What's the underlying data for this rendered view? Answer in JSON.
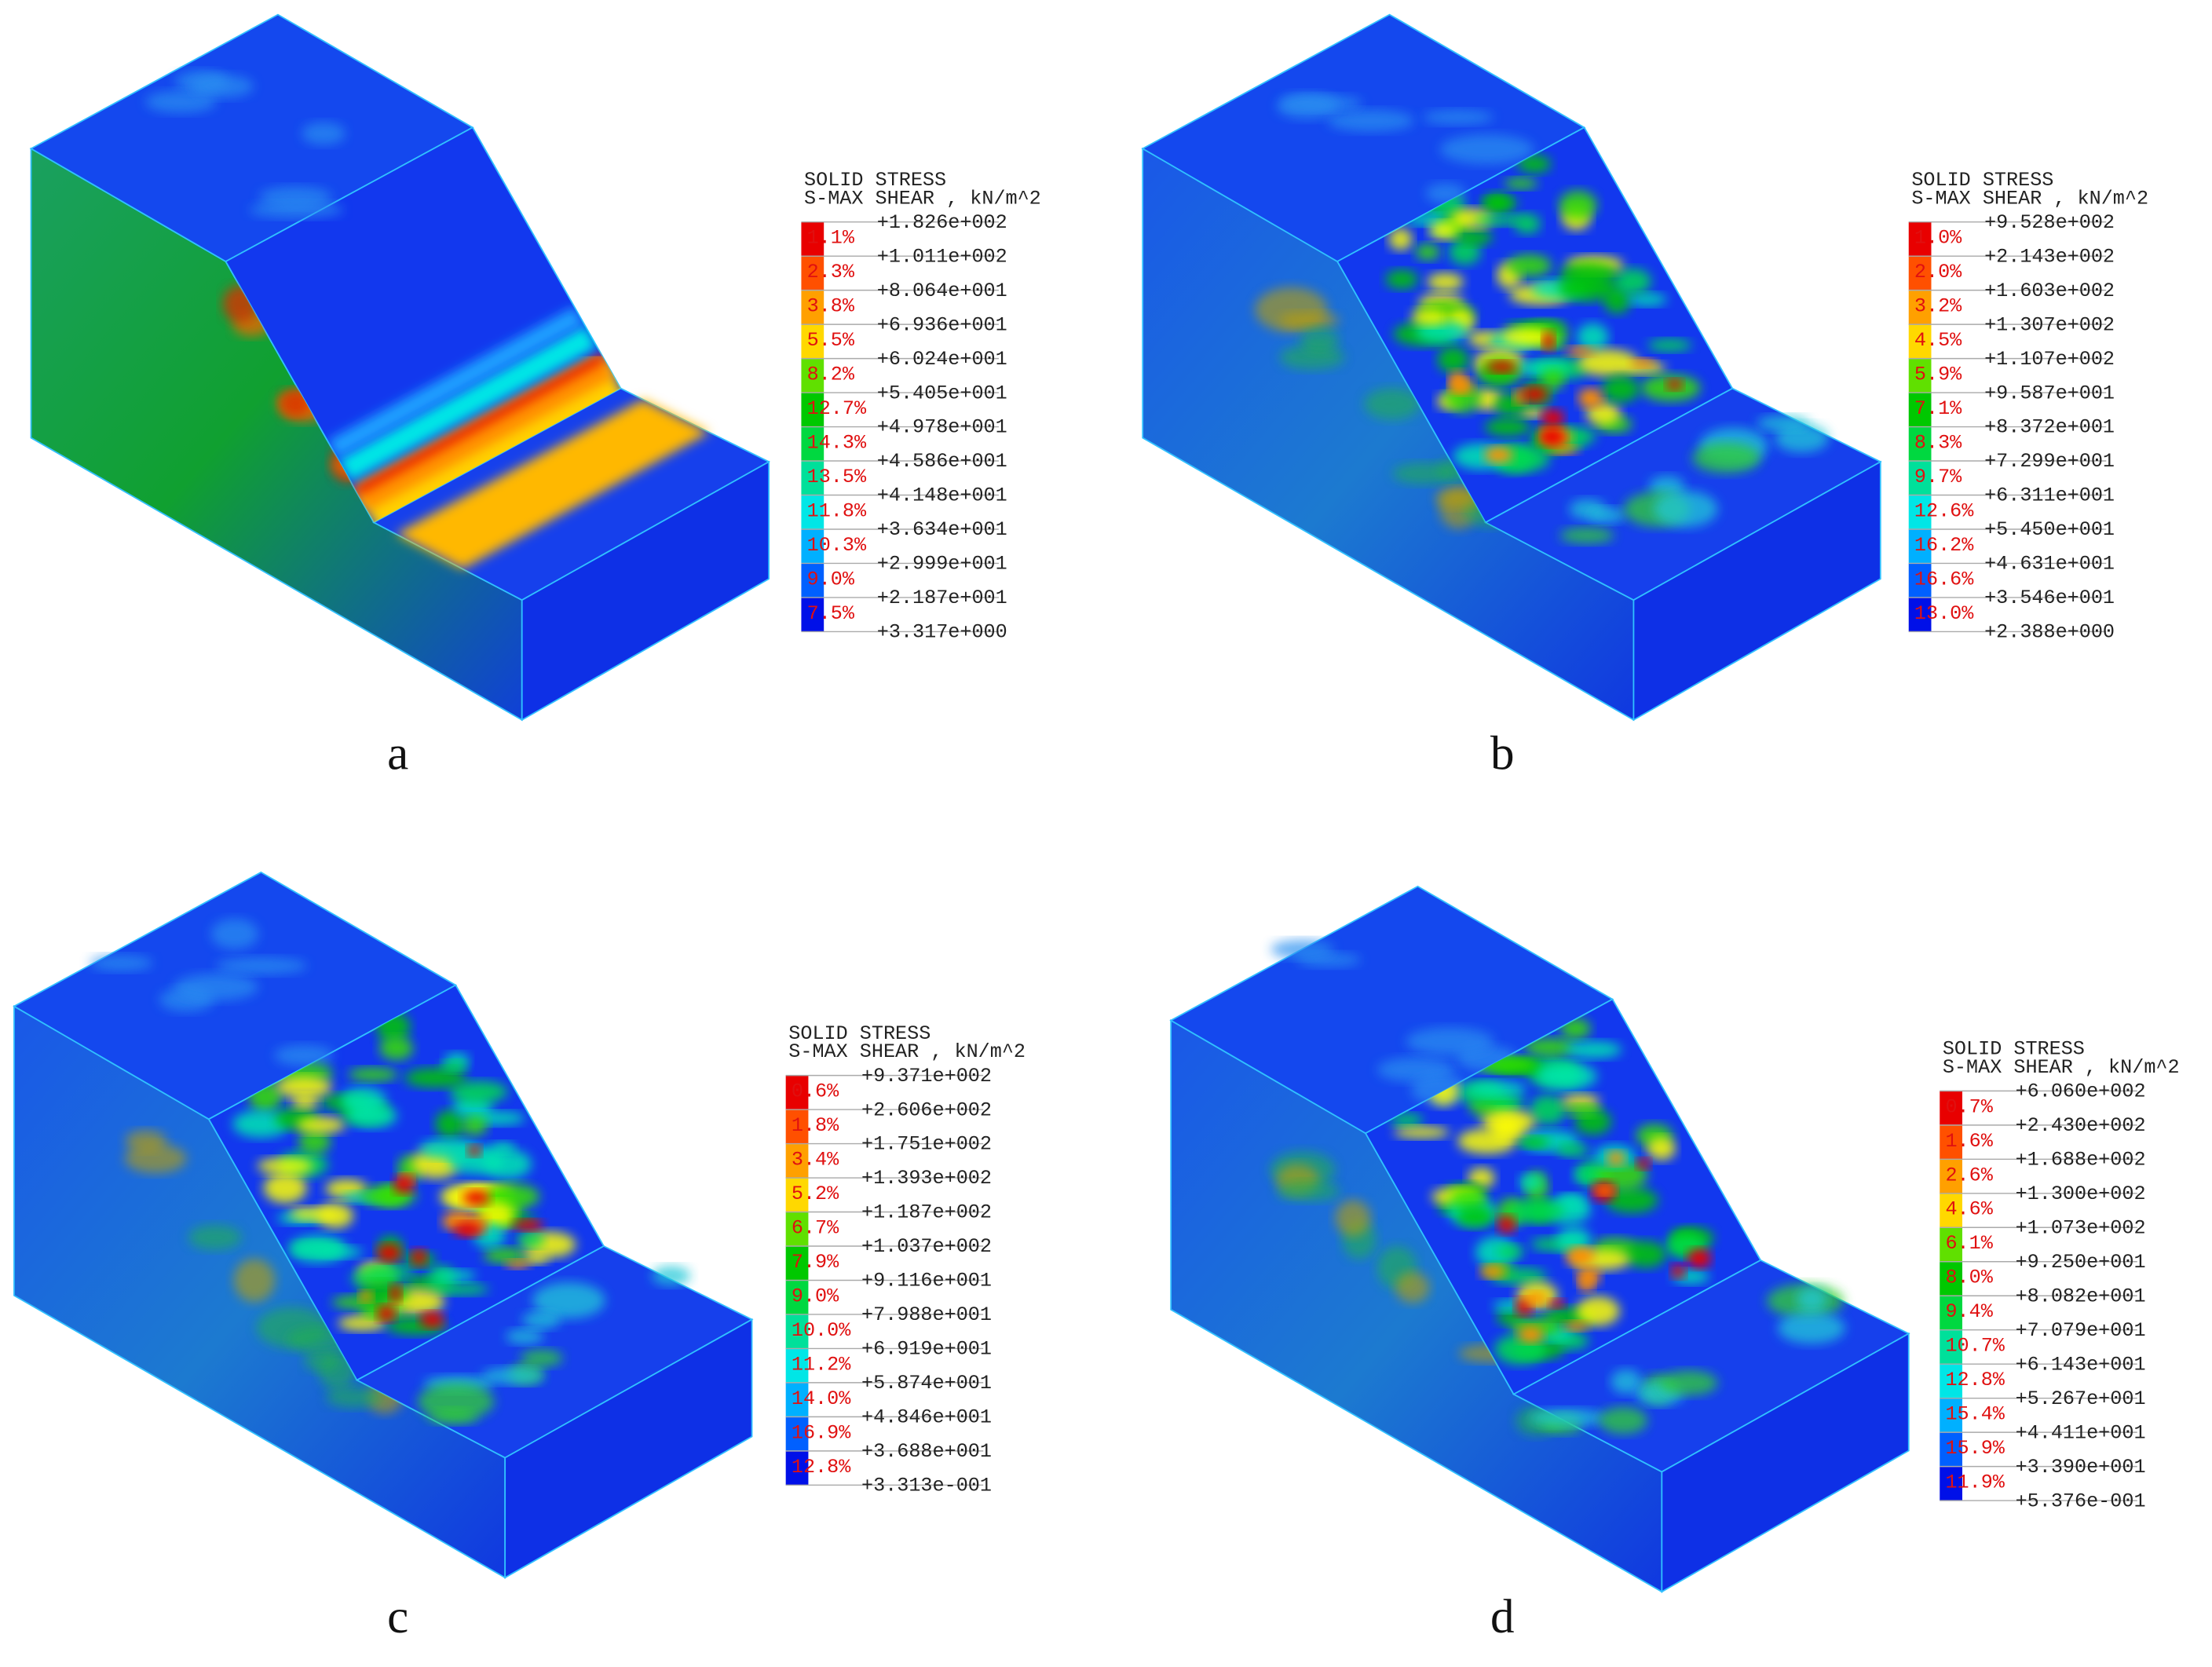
{
  "panels": [
    {
      "label": "a",
      "legend": {
        "title": [
          "SOLID STRESS",
          "S-MAX SHEAR , kN/m^2"
        ],
        "values": [
          "+1.826e+002",
          "+1.011e+002",
          "+8.064e+001",
          "+6.936e+001",
          "+6.024e+001",
          "+5.405e+001",
          "+4.978e+001",
          "+4.586e+001",
          "+4.148e+001",
          "+3.634e+001",
          "+2.999e+001",
          "+2.187e+001",
          "+3.317e+000"
        ],
        "percents": [
          "1.1%",
          "2.3%",
          "3.8%",
          "5.5%",
          "8.2%",
          "12.7%",
          "14.3%",
          "13.5%",
          "11.8%",
          "10.3%",
          "9.0%",
          "7.5%"
        ]
      }
    },
    {
      "label": "b",
      "legend": {
        "title": [
          "SOLID STRESS",
          "S-MAX SHEAR , kN/m^2"
        ],
        "values": [
          "+9.528e+002",
          "+2.143e+002",
          "+1.603e+002",
          "+1.307e+002",
          "+1.107e+002",
          "+9.587e+001",
          "+8.372e+001",
          "+7.299e+001",
          "+6.311e+001",
          "+5.450e+001",
          "+4.631e+001",
          "+3.546e+001",
          "+2.388e+000"
        ],
        "percents": [
          "1.0%",
          "2.0%",
          "3.2%",
          "4.5%",
          "5.9%",
          "7.1%",
          "8.3%",
          "9.7%",
          "12.6%",
          "16.2%",
          "16.6%",
          "13.0%"
        ]
      }
    },
    {
      "label": "c",
      "legend": {
        "title": [
          "SOLID STRESS",
          "S-MAX SHEAR , kN/m^2"
        ],
        "values": [
          "+9.371e+002",
          "+2.606e+002",
          "+1.751e+002",
          "+1.393e+002",
          "+1.187e+002",
          "+1.037e+002",
          "+9.116e+001",
          "+7.988e+001",
          "+6.919e+001",
          "+5.874e+001",
          "+4.846e+001",
          "+3.688e+001",
          "+3.313e-001"
        ],
        "percents": [
          "0.6%",
          "1.8%",
          "3.4%",
          "5.2%",
          "6.7%",
          "7.9%",
          "9.0%",
          "10.0%",
          "11.2%",
          "14.0%",
          "16.9%",
          "12.8%"
        ]
      }
    },
    {
      "label": "d",
      "legend": {
        "title": [
          "SOLID STRESS",
          "S-MAX SHEAR , kN/m^2"
        ],
        "values": [
          "+6.060e+002",
          "+2.430e+002",
          "+1.688e+002",
          "+1.300e+002",
          "+1.073e+002",
          "+9.250e+001",
          "+8.082e+001",
          "+7.079e+001",
          "+6.143e+001",
          "+5.267e+001",
          "+4.411e+001",
          "+3.390e+001",
          "+5.376e-001"
        ],
        "percents": [
          "0.7%",
          "1.6%",
          "2.6%",
          "4.6%",
          "6.1%",
          "8.0%",
          "9.4%",
          "10.7%",
          "12.8%",
          "15.4%",
          "15.9%",
          "11.9%"
        ]
      }
    }
  ]
}
